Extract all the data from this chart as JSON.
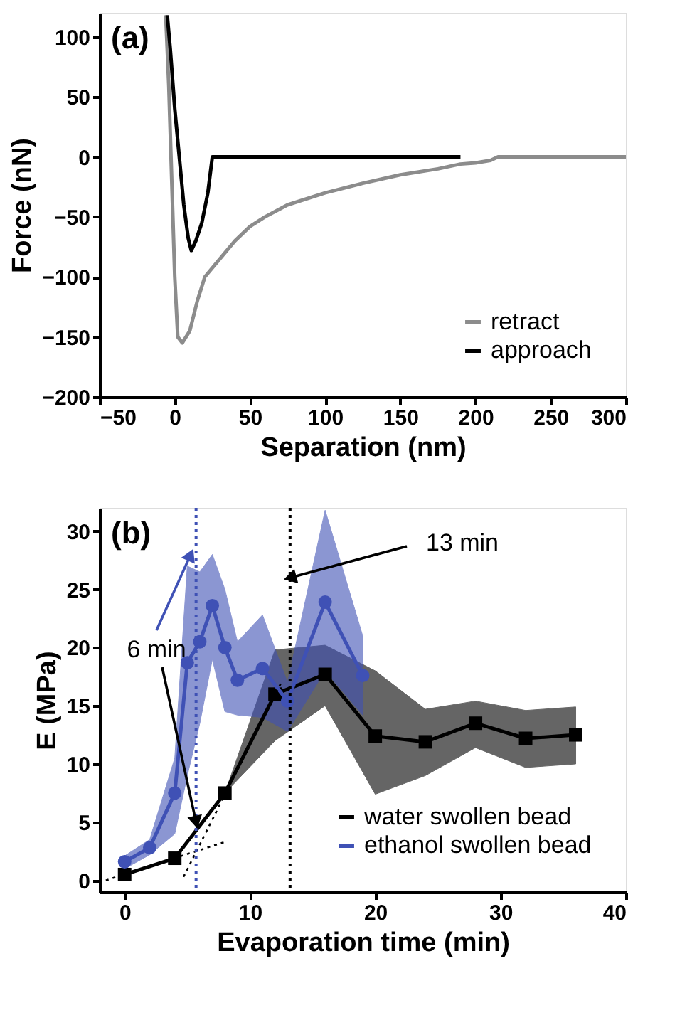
{
  "chart_data": [
    {
      "type": "line",
      "xlabel": "Separation (nm)",
      "ylabel": "Force (nN)",
      "xlim": [
        -50,
        300
      ],
      "ylim": [
        -200,
        120
      ],
      "xticks": [
        -50,
        0,
        50,
        100,
        150,
        200,
        250,
        300
      ],
      "yticks": [
        -200,
        -150,
        -100,
        -50,
        0,
        50,
        100
      ],
      "grid": false,
      "legend": "bottom right",
      "marker": "none",
      "annotations": [
        "(a)"
      ],
      "series": [
        {
          "name": "retract",
          "color": "#8c8c8c",
          "x": [
            -6,
            -4,
            -2,
            0,
            2,
            5,
            10,
            15,
            20,
            30,
            40,
            50,
            60,
            75,
            100,
            125,
            150,
            175,
            190,
            200,
            210,
            215,
            250,
            300
          ],
          "values": [
            118,
            60,
            -20,
            -100,
            -150,
            -155,
            -145,
            -120,
            -100,
            -85,
            -70,
            -58,
            -50,
            -40,
            -30,
            -22,
            -15,
            -10,
            -6,
            -5,
            -3,
            0,
            0,
            0
          ]
        },
        {
          "name": "approach",
          "color": "#000000",
          "x": [
            -5,
            -3,
            0,
            3,
            6,
            9,
            11,
            14,
            18,
            22,
            25,
            100,
            190
          ],
          "values": [
            118,
            90,
            40,
            0,
            -40,
            -68,
            -78,
            -70,
            -55,
            -30,
            0,
            0,
            0
          ]
        }
      ]
    },
    {
      "type": "line",
      "xlabel": "Evaporation time (min)",
      "ylabel": "E (MPa)",
      "xlim": [
        -2,
        40
      ],
      "ylim": [
        -1,
        32
      ],
      "xticks": [
        0,
        10,
        20,
        30,
        40
      ],
      "yticks": [
        0,
        5,
        10,
        15,
        20,
        25,
        30
      ],
      "grid": false,
      "legend": "bottom right",
      "annotations": [
        "(b)",
        {
          "text": "6 min",
          "x": 5.7,
          "y": 5
        },
        {
          "text": "13 min",
          "x": 13.2,
          "y": 26
        }
      ],
      "ref_lines": [
        {
          "axis": "x",
          "value": 5.7,
          "color": "#3f51b5",
          "line_style": "dotted"
        },
        {
          "axis": "x",
          "value": 13.2,
          "color": "#000000",
          "line_style": "dotted"
        }
      ],
      "series": [
        {
          "name": "water swollen bead",
          "color": "#000000",
          "marker": "square",
          "x": [
            0,
            4,
            8,
            12,
            16,
            20,
            24,
            28,
            32,
            36
          ],
          "values": [
            0.5,
            1.9,
            7.5,
            16,
            17.7,
            12.4,
            11.9,
            13.5,
            12.2,
            12.5
          ],
          "lower": [
            null,
            null,
            7.5,
            12,
            15,
            7.4,
            9,
            11.4,
            9.7,
            10
          ],
          "upper": [
            null,
            null,
            7.5,
            19.8,
            20.2,
            18,
            14.7,
            15.4,
            14.6,
            14.9
          ]
        },
        {
          "name": "ethanol swollen bead",
          "color": "#3f51b5",
          "marker": "circle",
          "x": [
            0,
            2,
            4,
            5,
            6,
            7,
            8,
            9,
            11,
            13,
            16,
            19
          ],
          "values": [
            1.6,
            2.8,
            7.5,
            18.7,
            20.5,
            23.6,
            20,
            17.2,
            18.2,
            15.4,
            23.9,
            17.6
          ],
          "lower": [
            1,
            2.2,
            4,
            9,
            13.5,
            19,
            14.5,
            14.2,
            14,
            12.8,
            18,
            14.2
          ],
          "upper": [
            2.1,
            3.5,
            10.5,
            27,
            26.5,
            28,
            25,
            20.5,
            22.8,
            17,
            31.8,
            21
          ]
        },
        {
          "type": "line",
          "color": "#000000",
          "line_style": "dotted",
          "marker": "none",
          "x": [
            -1.5,
            8
          ],
          "values": [
            0,
            3.3
          ]
        },
        {
          "type": "line",
          "color": "#000000",
          "line_style": "dotted",
          "marker": "none",
          "x": [
            4.7,
            12.5
          ],
          "values": [
            0.3,
            17
          ]
        }
      ]
    }
  ]
}
